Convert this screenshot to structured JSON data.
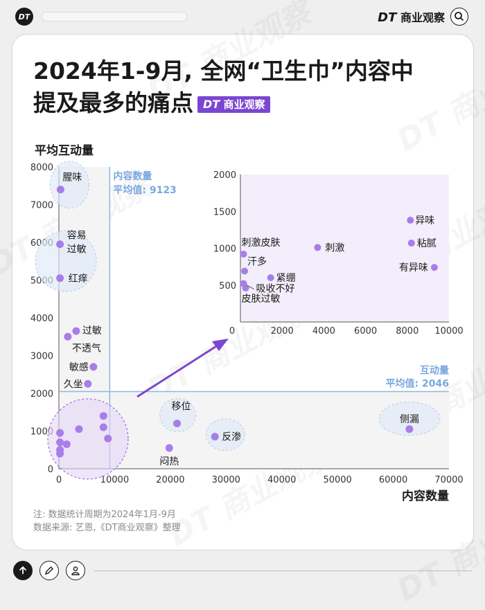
{
  "header": {
    "logo_text": "DT",
    "brand_logo": "DT",
    "brand_text": "商业观察"
  },
  "title": {
    "line1": "2024年1-9月, 全网“卫生巾”内容中",
    "line2": "提及最多的痛点",
    "badge_logo": "DT",
    "badge_text": "商业观察"
  },
  "watermark": "DT 商业观察",
  "footer": {
    "note": "注: 数据统计周期为2024年1月-9月",
    "source": "数据来源: 艺恩,《DT商业观察》整理"
  },
  "chart_data": [
    {
      "type": "scatter",
      "xlabel": "内容数量",
      "ylabel": "平均互动量",
      "xlim": [
        0,
        70000
      ],
      "ylim": [
        0,
        8000
      ],
      "xticks": [
        0,
        10000,
        20000,
        30000,
        40000,
        50000,
        60000,
        70000
      ],
      "yticks": [
        0,
        1000,
        2000,
        3000,
        4000,
        5000,
        6000,
        7000,
        8000
      ],
      "color": "#a77ee8",
      "reference_lines": {
        "x_mean": {
          "value": 9123,
          "label1": "内容数量",
          "label2": "平均值: 9123",
          "color": "#8fb4e3"
        },
        "y_mean": {
          "value": 2046,
          "label1": "互动量",
          "label2": "平均值: 2046",
          "color": "#8fb4e3"
        }
      },
      "points": [
        {
          "label": "腥味",
          "x": 300,
          "y": 7400
        },
        {
          "label": "容易过敏",
          "x": 200,
          "y": 5950
        },
        {
          "label": "红痒",
          "x": 200,
          "y": 5050
        },
        {
          "label": "过敏",
          "x": 3100,
          "y": 3650
        },
        {
          "label": "不透气",
          "x": 1600,
          "y": 3500
        },
        {
          "label": "敏感",
          "x": 6200,
          "y": 2700
        },
        {
          "label": "久坐",
          "x": 5200,
          "y": 2250
        },
        {
          "label": "移位",
          "x": 21200,
          "y": 1200
        },
        {
          "label": "反渗",
          "x": 28000,
          "y": 850
        },
        {
          "label": "闷热",
          "x": 19800,
          "y": 550
        },
        {
          "label": "侧漏",
          "x": 62900,
          "y": 1050
        },
        {
          "label": "",
          "x": 8000,
          "y": 1400
        },
        {
          "label": "",
          "x": 8000,
          "y": 1100
        },
        {
          "label": "",
          "x": 8800,
          "y": 800
        },
        {
          "label": "",
          "x": 3600,
          "y": 1050
        },
        {
          "label": "",
          "x": 1400,
          "y": 650
        },
        {
          "label": "",
          "x": 200,
          "y": 950
        },
        {
          "label": "",
          "x": 200,
          "y": 700
        },
        {
          "label": "",
          "x": 200,
          "y": 500
        },
        {
          "label": "",
          "x": 200,
          "y": 400
        }
      ],
      "highlight_groups": [
        {
          "labels": [
            "腥味"
          ],
          "style": "ellipse"
        },
        {
          "labels": [
            "容易过敏",
            "红痒"
          ],
          "style": "ellipse"
        },
        {
          "labels": [
            "移位"
          ],
          "style": "ellipse"
        },
        {
          "labels": [
            "反渗"
          ],
          "style": "ellipse"
        },
        {
          "labels": [
            "侧漏"
          ],
          "style": "ellipse"
        },
        {
          "labels": [
            "zoomed cluster"
          ],
          "style": "dashed-purple-circle"
        }
      ]
    },
    {
      "type": "scatter",
      "title": "",
      "xlim": [
        0,
        10000
      ],
      "ylim": [
        0,
        2000
      ],
      "xticks": [
        0,
        2000,
        4000,
        6000,
        8000,
        10000
      ],
      "yticks": [
        500,
        1000,
        1500,
        2000
      ],
      "color": "#a77ee8",
      "points": [
        {
          "label": "异味",
          "x": 8150,
          "y": 1380
        },
        {
          "label": "粘腻",
          "x": 8200,
          "y": 1070
        },
        {
          "label": "有异味",
          "x": 9300,
          "y": 740
        },
        {
          "label": "刺激",
          "x": 3700,
          "y": 1010
        },
        {
          "label": "刺激皮肤",
          "x": 150,
          "y": 920
        },
        {
          "label": "汗多",
          "x": 200,
          "y": 690
        },
        {
          "label": "紧绷",
          "x": 1450,
          "y": 600
        },
        {
          "label": "吸收不好",
          "x": 150,
          "y": 520
        },
        {
          "label": "皮肤过敏",
          "x": 250,
          "y": 460
        }
      ]
    }
  ]
}
